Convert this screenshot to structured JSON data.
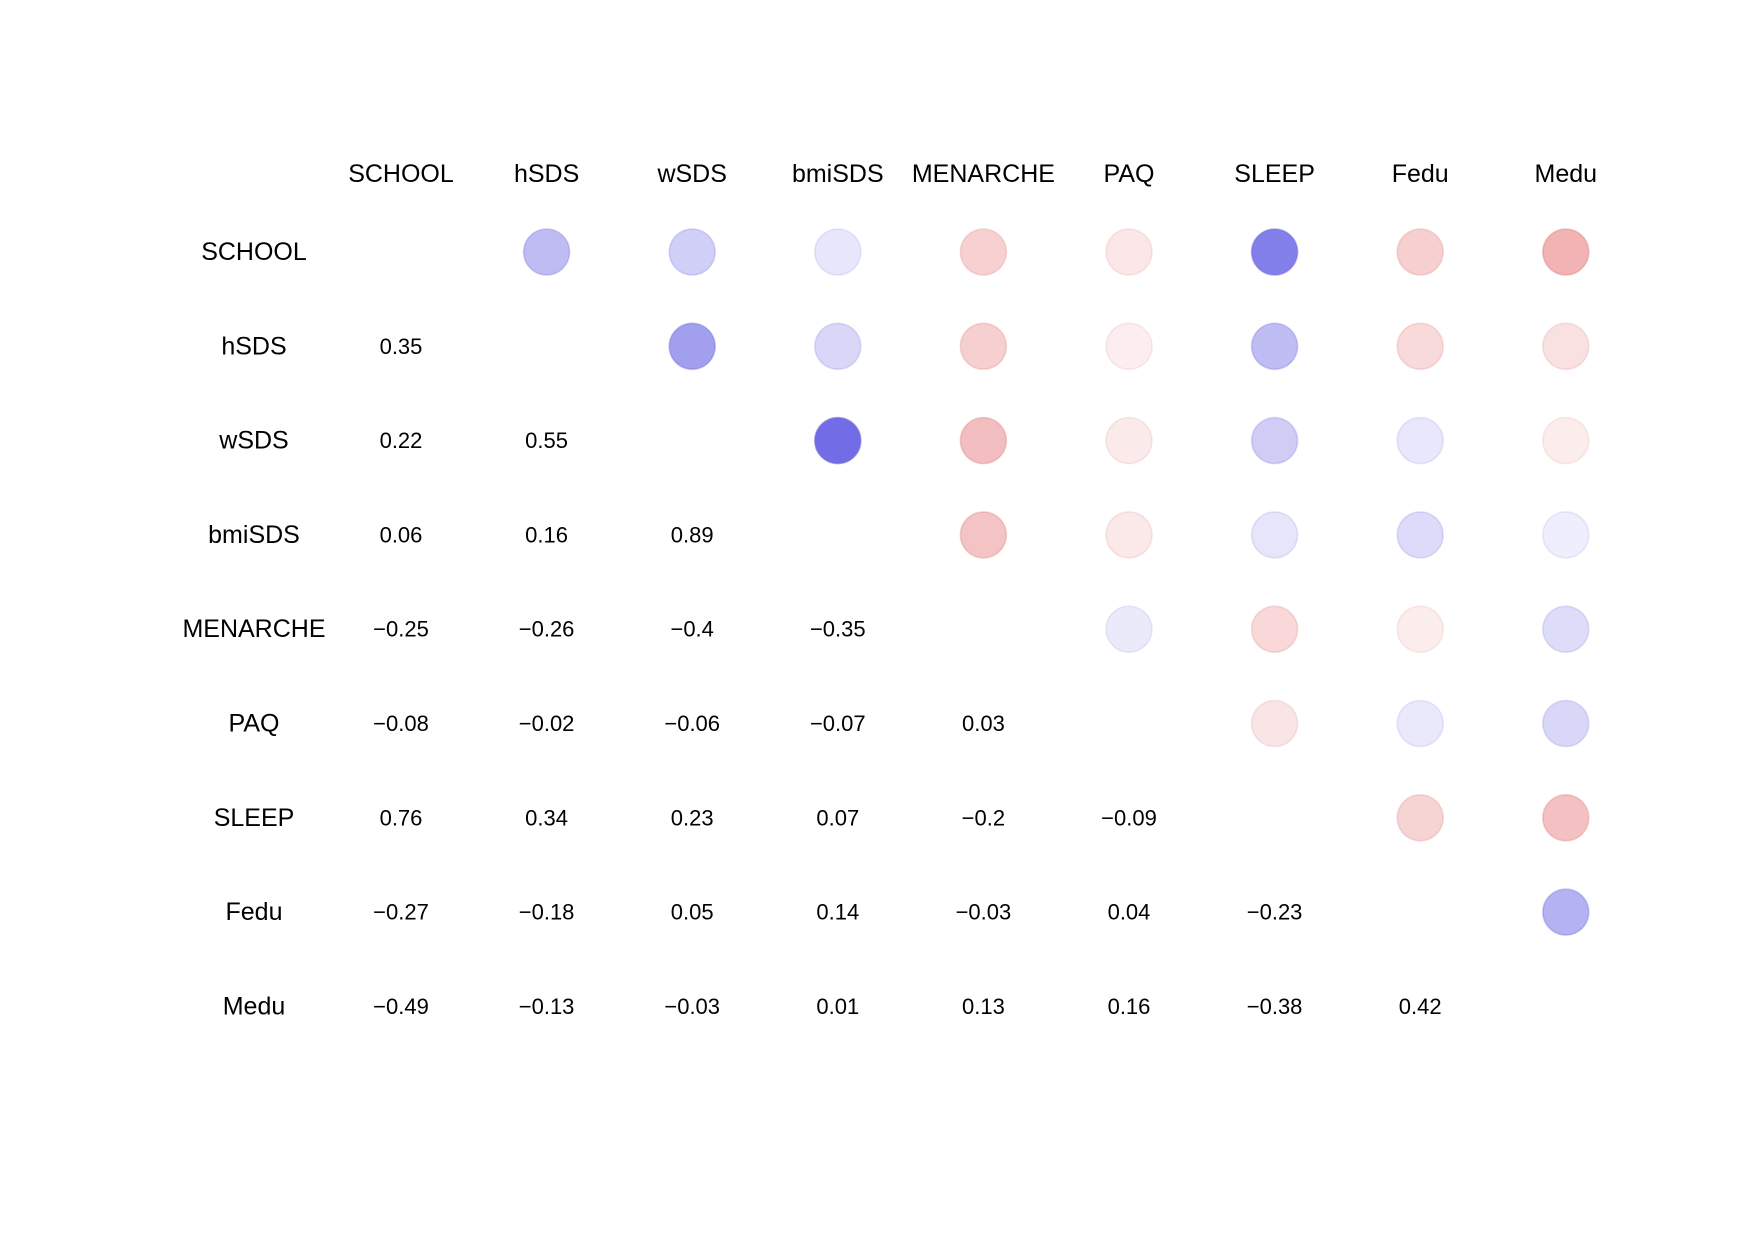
{
  "chart_data": {
    "type": "heatmap",
    "variables": [
      "SCHOOL",
      "hSDS",
      "wSDS",
      "bmiSDS",
      "MENARCHE",
      "PAQ",
      "SLEEP",
      "Fedu",
      "Medu"
    ],
    "matrix": [
      [
        null,
        0.35,
        0.22,
        0.06,
        -0.25,
        -0.08,
        0.76,
        -0.27,
        -0.49
      ],
      [
        0.35,
        null,
        0.55,
        0.16,
        -0.26,
        -0.02,
        0.34,
        -0.18,
        -0.13
      ],
      [
        0.22,
        0.55,
        null,
        0.89,
        -0.4,
        -0.06,
        0.23,
        0.05,
        -0.03
      ],
      [
        0.06,
        0.16,
        0.89,
        null,
        -0.35,
        -0.07,
        0.07,
        0.14,
        0.01
      ],
      [
        -0.25,
        -0.26,
        -0.4,
        -0.35,
        null,
        0.03,
        -0.2,
        -0.03,
        0.13
      ],
      [
        -0.08,
        -0.02,
        -0.06,
        -0.07,
        0.03,
        null,
        -0.09,
        0.04,
        0.16
      ],
      [
        0.76,
        0.34,
        0.23,
        0.07,
        -0.2,
        -0.09,
        null,
        -0.23,
        -0.38
      ],
      [
        -0.27,
        -0.18,
        0.05,
        0.14,
        -0.03,
        0.04,
        -0.23,
        null,
        0.42
      ],
      [
        -0.49,
        -0.13,
        -0.03,
        0.01,
        0.13,
        0.16,
        -0.38,
        0.42,
        null
      ]
    ],
    "lower_triangle": "numbers",
    "upper_triangle": "circles",
    "value_range": [
      -1,
      1
    ],
    "colors": {
      "positive": "#3b35dc",
      "negative": "#df4f52",
      "circle_stroke_positive": "#6a66d8",
      "circle_stroke_negative": "#d6706f"
    }
  }
}
